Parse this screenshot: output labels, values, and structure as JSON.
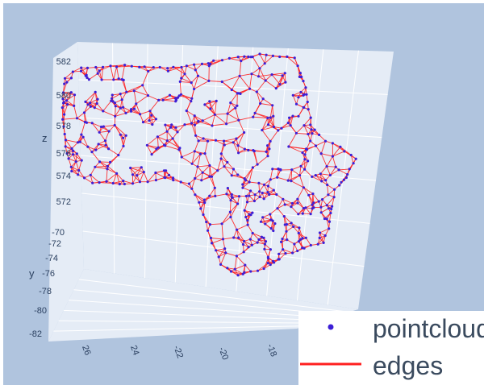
{
  "chart_data": {
    "type": "scatter3d",
    "scene": {
      "background": "#b0c4de",
      "plane_color": "#e5ecf6",
      "grid": true
    },
    "axes": {
      "x": {
        "label": "",
        "ticks": [
          "26",
          "24",
          "-22",
          "-20",
          "-18"
        ]
      },
      "y": {
        "label": "y",
        "ticks": [
          "-70",
          "-72",
          "-74",
          "-76",
          "-78",
          "-80",
          "-82"
        ]
      },
      "z": {
        "label": "z",
        "ticks": [
          "582",
          "580",
          "578",
          "576",
          "574",
          "572"
        ],
        "range": [
          571,
          583
        ]
      }
    },
    "series": [
      {
        "name": "pointcloud",
        "mode": "markers",
        "color": "#3c1fd6",
        "marker_size": 2
      },
      {
        "name": "edges",
        "mode": "lines",
        "color": "#ff1f1f"
      }
    ],
    "legend": {
      "position": "bottom-right"
    }
  }
}
